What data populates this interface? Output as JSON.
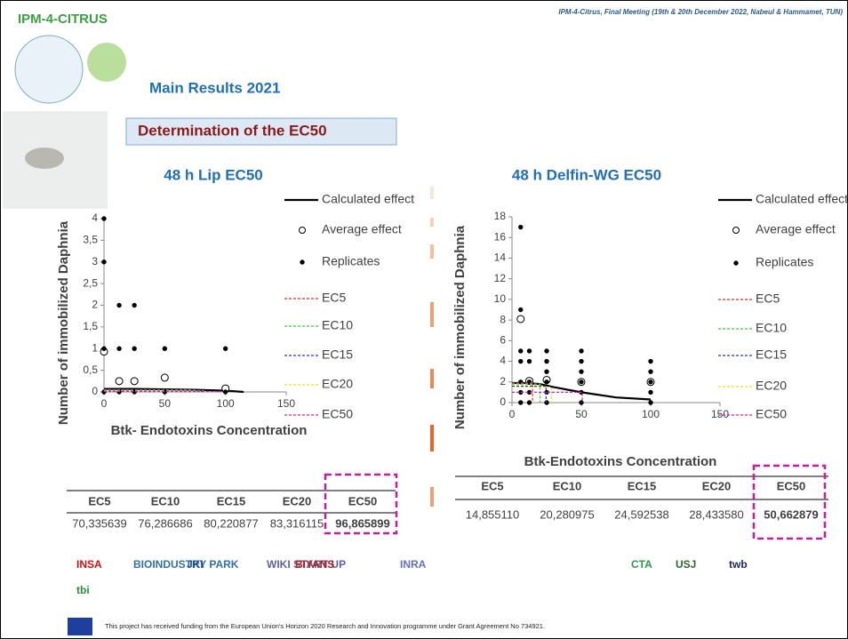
{
  "header": {
    "brand": "IPM-4-CITRUS",
    "meeting": "IPM-4-Citrus, Final Meeting (19th & 20th December 2022, Nabeul & Hammamet, TUN)",
    "section": "Main Results 2021",
    "banner": "Determination of the EC50"
  },
  "chart_data": [
    {
      "type": "scatter",
      "title": "48 h Lip EC50",
      "x_label": "Btk- Endotoxins Concentration",
      "y_label": "Number of immobilized Daphnia",
      "xlim": [
        0,
        150
      ],
      "xticks": [
        0,
        50,
        100,
        150
      ],
      "ylim": [
        0,
        4
      ],
      "yticks": [
        0,
        {
          "value": 0.5,
          "label": "0,5"
        },
        1,
        {
          "value": 1.5,
          "label": "1,5"
        },
        2,
        {
          "value": 2.5,
          "label": "2,5"
        },
        3,
        {
          "value": 3.5,
          "label": "3,5"
        },
        4
      ],
      "series": [
        {
          "name": "Calculated effect",
          "style": "line",
          "color": "#000000",
          "x": [
            0,
            25,
            50,
            75,
            100,
            115
          ],
          "values": [
            0.07,
            0.07,
            0.06,
            0.05,
            0.03,
            0
          ]
        },
        {
          "name": "Average effect",
          "style": "open",
          "color": "#000000",
          "x": [
            0,
            12.5,
            25,
            50,
            100
          ],
          "values": [
            0.93,
            0.25,
            0.25,
            0.33,
            0.08
          ]
        },
        {
          "name": "Replicates",
          "style": "filled",
          "color": "#000000",
          "x": [
            0,
            0,
            0,
            0,
            12.5,
            12.5,
            12.5,
            25,
            25,
            25,
            50,
            50,
            100,
            100
          ],
          "values": [
            4,
            3,
            1,
            0,
            2,
            1,
            0,
            2,
            1,
            0,
            1,
            0,
            1,
            0
          ]
        },
        {
          "name": "EC5",
          "style": "dashed",
          "color": "#e0302a",
          "x": [
            0,
            70.34,
            70.34
          ],
          "values": [
            0.05,
            0.05,
            0
          ]
        },
        {
          "name": "EC10",
          "style": "dashed",
          "color": "#3ccc3c",
          "x": [
            0,
            76.29,
            76.29
          ],
          "values": [
            0.04,
            0.04,
            0
          ]
        },
        {
          "name": "EC15",
          "style": "dashed",
          "color": "#3030c0",
          "x": [
            0,
            80.22,
            80.22
          ],
          "values": [
            0.03,
            0.03,
            0
          ]
        },
        {
          "name": "EC20",
          "style": "dashed",
          "color": "#e8e020",
          "x": [
            0,
            83.32,
            83.32
          ],
          "values": [
            0.02,
            0.02,
            0
          ]
        },
        {
          "name": "EC50",
          "style": "dashed",
          "color": "#d020c0",
          "x": [
            0,
            96.87,
            96.87
          ],
          "values": [
            0.01,
            0.01,
            0
          ]
        }
      ]
    },
    {
      "type": "scatter",
      "title": "48 h Delfin-WG EC50",
      "x_label": "Btk-Endotoxins Concentration",
      "y_label": "Number of immobilized Daphnia",
      "xlim": [
        0,
        150
      ],
      "xticks": [
        0,
        50,
        100,
        150
      ],
      "ylim": [
        0,
        18
      ],
      "yticks": [
        0,
        2,
        4,
        6,
        8,
        10,
        12,
        14,
        16,
        18
      ],
      "series": [
        {
          "name": "Calculated effect",
          "style": "line",
          "color": "#000000",
          "x": [
            0,
            10,
            20,
            30,
            50,
            75,
            100
          ],
          "values": [
            1.9,
            1.9,
            1.8,
            1.5,
            1.0,
            0.5,
            0.3
          ]
        },
        {
          "name": "Average effect",
          "style": "open",
          "color": "#000000",
          "x": [
            6.25,
            12.5,
            25,
            50,
            100
          ],
          "values": [
            8.1,
            2.1,
            2.2,
            2,
            2
          ]
        },
        {
          "name": "Replicates",
          "style": "filled",
          "color": "#000000",
          "x": [
            6.25,
            6.25,
            6.25,
            6.25,
            6.25,
            6.25,
            6.25,
            12.5,
            12.5,
            12.5,
            12.5,
            12.5,
            25,
            25,
            25,
            25,
            25,
            25,
            50,
            50,
            50,
            50,
            50,
            50,
            100,
            100,
            100,
            100,
            100
          ],
          "values": [
            17,
            9,
            5,
            4,
            2,
            1,
            0,
            5,
            4,
            2,
            1,
            0,
            5,
            4,
            3,
            2,
            1,
            0,
            5,
            4,
            3,
            2,
            1,
            0,
            4,
            3,
            2,
            1,
            0
          ]
        },
        {
          "name": "EC5",
          "style": "dashed",
          "color": "#e0302a",
          "x": [
            0,
            14.86,
            14.86
          ],
          "values": [
            1.9,
            1.9,
            0
          ]
        },
        {
          "name": "EC10",
          "style": "dashed",
          "color": "#3ccc3c",
          "x": [
            0,
            20.28,
            20.28
          ],
          "values": [
            1.8,
            1.8,
            0
          ]
        },
        {
          "name": "EC15",
          "style": "dashed",
          "color": "#3030c0",
          "x": [
            0,
            24.59,
            24.59
          ],
          "values": [
            1.6,
            1.6,
            0
          ]
        },
        {
          "name": "EC20",
          "style": "dashed",
          "color": "#e8e020",
          "x": [
            0,
            28.43,
            28.43
          ],
          "values": [
            1.5,
            1.5,
            0
          ]
        },
        {
          "name": "EC50",
          "style": "dashed",
          "color": "#d020c0",
          "x": [
            0,
            50.66,
            50.66
          ],
          "values": [
            1.0,
            1.0,
            0
          ]
        }
      ]
    }
  ],
  "tables": [
    {
      "header": [
        "EC5",
        "EC10",
        "EC15",
        "EC20",
        "EC50"
      ],
      "row": [
        "70,335639",
        "76,286686",
        "80,220877",
        "83,316115",
        "96,865899"
      ]
    },
    {
      "header": [
        "EC5",
        "EC10",
        "EC15",
        "EC20",
        "EC50"
      ],
      "row": [
        "14,855110",
        "20,280975",
        "24,592538",
        "28,433580",
        "50,662879"
      ]
    }
  ],
  "logos": [
    "INSA",
    "tbi",
    "BIOINDUSTRY PARK",
    "JKI",
    "WIKI START UP",
    "BIYANS",
    "INRA",
    "CTA",
    "USJ",
    "twb"
  ],
  "footer": "This project has received funding from the European Union's Horizon 2020 Research and Innovation programme under Grant Agreement No 734921."
}
